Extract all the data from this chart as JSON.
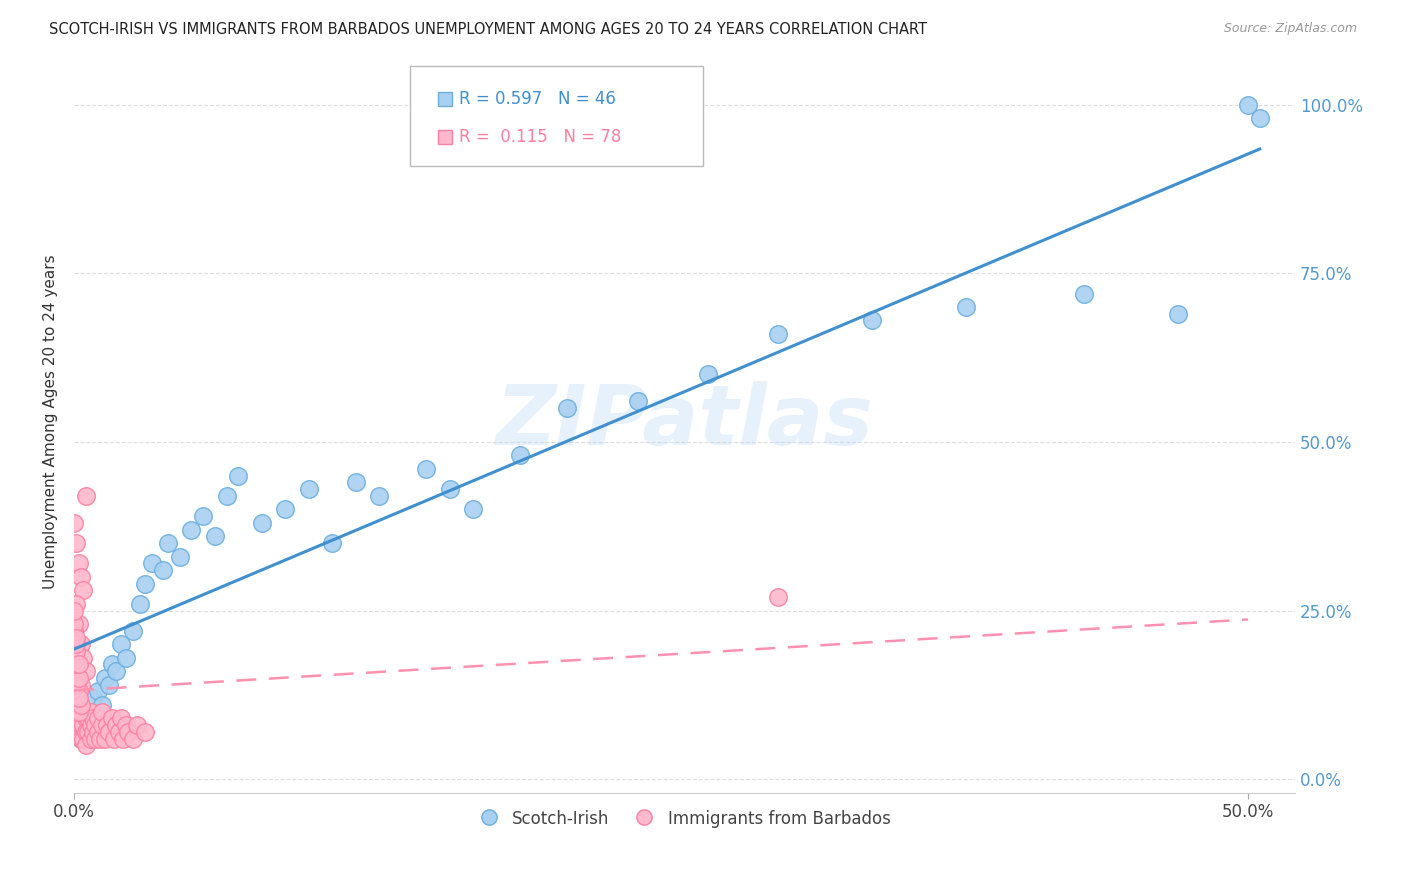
{
  "title": "SCOTCH-IRISH VS IMMIGRANTS FROM BARBADOS UNEMPLOYMENT AMONG AGES 20 TO 24 YEARS CORRELATION CHART",
  "source": "Source: ZipAtlas.com",
  "ylabel": "Unemployment Among Ages 20 to 24 years",
  "xlim": [
    0.0,
    0.52
  ],
  "ylim": [
    -0.02,
    1.08
  ],
  "xticks": [
    0.0,
    0.5
  ],
  "xticklabels": [
    "0.0%",
    "50.0%"
  ],
  "yticks": [
    0.0,
    0.25,
    0.5,
    0.75,
    1.0
  ],
  "yticklabels": [
    "0.0%",
    "25.0%",
    "50.0%",
    "75.0%",
    "100.0%"
  ],
  "legend_scotch_label": "Scotch-Irish",
  "legend_barbados_label": "Immigrants from Barbados",
  "r_scotch": "0.597",
  "n_scotch": "46",
  "r_barbados": "0.115",
  "n_barbados": "78",
  "scotch_color": "#a8d0f0",
  "scotch_edge_color": "#6aaee0",
  "barbados_color": "#ffb8cc",
  "barbados_edge_color": "#ff80a0",
  "scotch_line_color": "#4090d0",
  "barbados_line_color": "#ff90b0",
  "tick_color": "#5599cc",
  "watermark": "ZIPatlas",
  "scotch_x": [
    0.003,
    0.005,
    0.006,
    0.007,
    0.008,
    0.009,
    0.01,
    0.012,
    0.013,
    0.015,
    0.016,
    0.018,
    0.02,
    0.022,
    0.025,
    0.028,
    0.03,
    0.033,
    0.038,
    0.04,
    0.045,
    0.05,
    0.055,
    0.06,
    0.065,
    0.07,
    0.08,
    0.09,
    0.1,
    0.11,
    0.12,
    0.13,
    0.15,
    0.16,
    0.17,
    0.19,
    0.21,
    0.24,
    0.27,
    0.3,
    0.34,
    0.38,
    0.43,
    0.47,
    0.5,
    0.505
  ],
  "scotch_y": [
    0.06,
    0.08,
    0.1,
    0.07,
    0.12,
    0.09,
    0.13,
    0.11,
    0.15,
    0.14,
    0.17,
    0.16,
    0.2,
    0.18,
    0.22,
    0.26,
    0.29,
    0.32,
    0.31,
    0.35,
    0.33,
    0.37,
    0.39,
    0.36,
    0.42,
    0.45,
    0.38,
    0.4,
    0.43,
    0.35,
    0.44,
    0.42,
    0.46,
    0.43,
    0.4,
    0.48,
    0.55,
    0.56,
    0.6,
    0.66,
    0.68,
    0.7,
    0.72,
    0.69,
    1.0,
    0.98
  ],
  "barbados_x": [
    0.0,
    0.001,
    0.001,
    0.001,
    0.002,
    0.002,
    0.002,
    0.003,
    0.003,
    0.003,
    0.004,
    0.004,
    0.004,
    0.005,
    0.005,
    0.005,
    0.006,
    0.006,
    0.007,
    0.007,
    0.007,
    0.008,
    0.008,
    0.009,
    0.009,
    0.01,
    0.01,
    0.011,
    0.012,
    0.012,
    0.013,
    0.014,
    0.015,
    0.016,
    0.017,
    0.018,
    0.019,
    0.02,
    0.021,
    0.022,
    0.023,
    0.025,
    0.027,
    0.03,
    0.0,
    0.001,
    0.002,
    0.003,
    0.004,
    0.005,
    0.001,
    0.002,
    0.003,
    0.004,
    0.005,
    0.0,
    0.001,
    0.002,
    0.003,
    0.001,
    0.002,
    0.003,
    0.0,
    0.001,
    0.002,
    0.001,
    0.002,
    0.0,
    0.001,
    0.0,
    0.001,
    0.002,
    0.0,
    0.001,
    0.0,
    0.001,
    0.0,
    0.3
  ],
  "barbados_y": [
    0.1,
    0.09,
    0.08,
    0.07,
    0.11,
    0.09,
    0.07,
    0.1,
    0.08,
    0.06,
    0.1,
    0.08,
    0.06,
    0.09,
    0.07,
    0.05,
    0.09,
    0.07,
    0.08,
    0.06,
    0.1,
    0.07,
    0.09,
    0.06,
    0.08,
    0.07,
    0.09,
    0.06,
    0.08,
    0.1,
    0.06,
    0.08,
    0.07,
    0.09,
    0.06,
    0.08,
    0.07,
    0.09,
    0.06,
    0.08,
    0.07,
    0.06,
    0.08,
    0.07,
    0.38,
    0.35,
    0.32,
    0.3,
    0.28,
    0.42,
    0.26,
    0.23,
    0.2,
    0.18,
    0.16,
    0.13,
    0.12,
    0.1,
    0.14,
    0.15,
    0.13,
    0.11,
    0.16,
    0.14,
    0.12,
    0.17,
    0.15,
    0.19,
    0.17,
    0.21,
    0.19,
    0.17,
    0.22,
    0.2,
    0.23,
    0.21,
    0.25,
    0.27
  ]
}
